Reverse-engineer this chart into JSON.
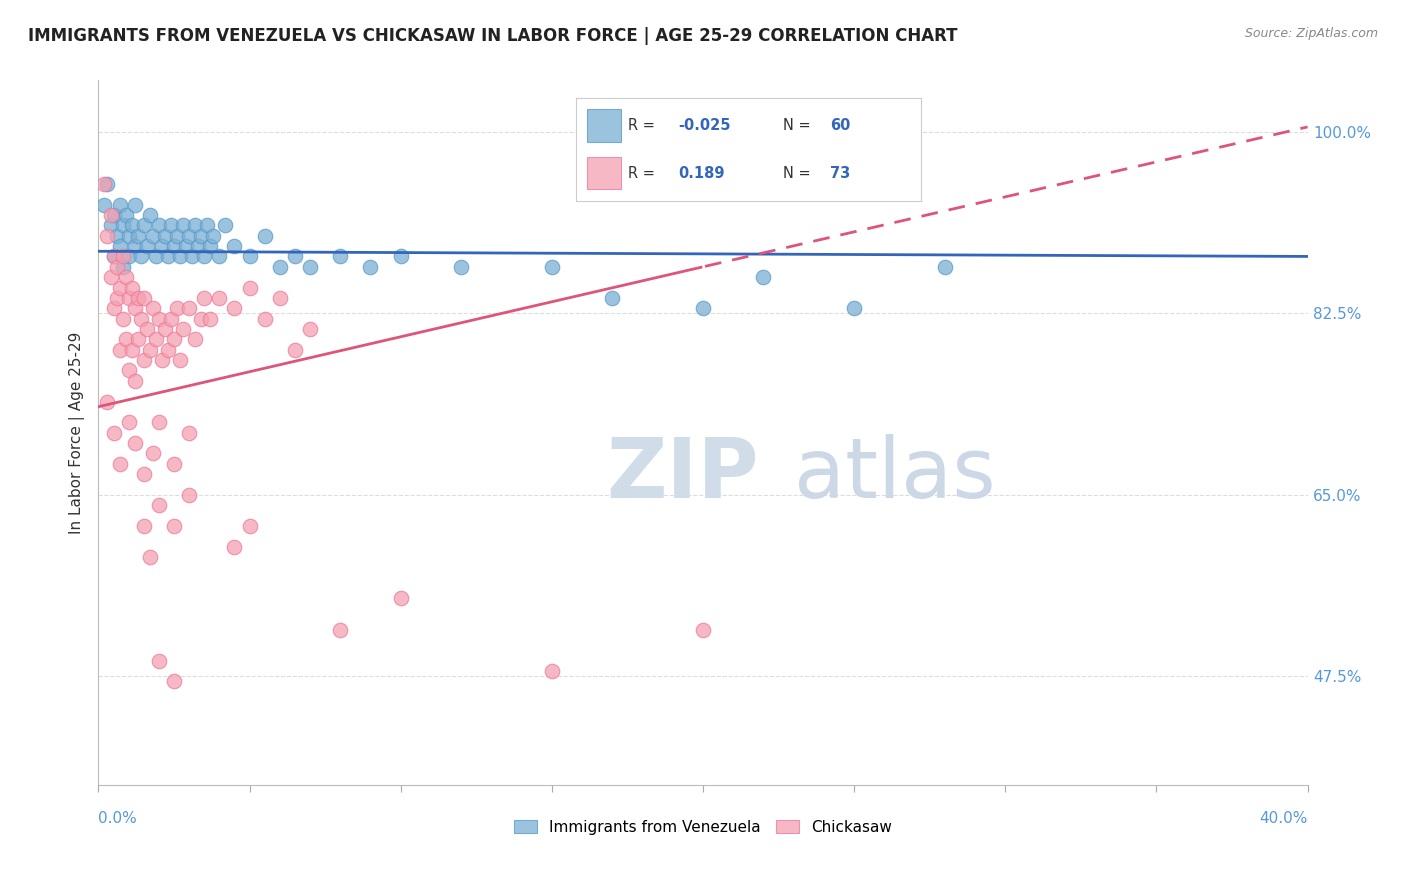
{
  "title": "IMMIGRANTS FROM VENEZUELA VS CHICKASAW IN LABOR FORCE | AGE 25-29 CORRELATION CHART",
  "source": "Source: ZipAtlas.com",
  "xlim": [
    0.0,
    40.0
  ],
  "ylim": [
    37.0,
    105.0
  ],
  "legend1_label": "Immigrants from Venezuela",
  "legend2_label": "Chickasaw",
  "R1": "-0.025",
  "N1": "60",
  "R2": "0.189",
  "N2": "73",
  "blue_color": "#7BAFD4",
  "pink_color": "#F4A0B0",
  "blue_edge": "#5599CC",
  "pink_edge": "#EE7799",
  "blue_trend_color": "#3366BB",
  "pink_trend_color": "#DD5577",
  "blue_scatter": [
    [
      0.2,
      93
    ],
    [
      0.3,
      95
    ],
    [
      0.4,
      91
    ],
    [
      0.5,
      92
    ],
    [
      0.5,
      88
    ],
    [
      0.6,
      90
    ],
    [
      0.7,
      89
    ],
    [
      0.7,
      93
    ],
    [
      0.8,
      91
    ],
    [
      0.8,
      87
    ],
    [
      0.9,
      92
    ],
    [
      1.0,
      90
    ],
    [
      1.0,
      88
    ],
    [
      1.1,
      91
    ],
    [
      1.2,
      89
    ],
    [
      1.2,
      93
    ],
    [
      1.3,
      90
    ],
    [
      1.4,
      88
    ],
    [
      1.5,
      91
    ],
    [
      1.6,
      89
    ],
    [
      1.7,
      92
    ],
    [
      1.8,
      90
    ],
    [
      1.9,
      88
    ],
    [
      2.0,
      91
    ],
    [
      2.1,
      89
    ],
    [
      2.2,
      90
    ],
    [
      2.3,
      88
    ],
    [
      2.4,
      91
    ],
    [
      2.5,
      89
    ],
    [
      2.6,
      90
    ],
    [
      2.7,
      88
    ],
    [
      2.8,
      91
    ],
    [
      2.9,
      89
    ],
    [
      3.0,
      90
    ],
    [
      3.1,
      88
    ],
    [
      3.2,
      91
    ],
    [
      3.3,
      89
    ],
    [
      3.4,
      90
    ],
    [
      3.5,
      88
    ],
    [
      3.6,
      91
    ],
    [
      3.7,
      89
    ],
    [
      3.8,
      90
    ],
    [
      4.0,
      88
    ],
    [
      4.2,
      91
    ],
    [
      4.5,
      89
    ],
    [
      5.0,
      88
    ],
    [
      5.5,
      90
    ],
    [
      6.0,
      87
    ],
    [
      6.5,
      88
    ],
    [
      7.0,
      87
    ],
    [
      8.0,
      88
    ],
    [
      9.0,
      87
    ],
    [
      10.0,
      88
    ],
    [
      12.0,
      87
    ],
    [
      15.0,
      87
    ],
    [
      17.0,
      84
    ],
    [
      20.0,
      83
    ],
    [
      22.0,
      86
    ],
    [
      25.0,
      83
    ],
    [
      28.0,
      87
    ]
  ],
  "pink_scatter": [
    [
      0.2,
      95
    ],
    [
      0.3,
      90
    ],
    [
      0.4,
      86
    ],
    [
      0.4,
      92
    ],
    [
      0.5,
      88
    ],
    [
      0.5,
      83
    ],
    [
      0.6,
      87
    ],
    [
      0.6,
      84
    ],
    [
      0.7,
      85
    ],
    [
      0.7,
      79
    ],
    [
      0.8,
      88
    ],
    [
      0.8,
      82
    ],
    [
      0.9,
      86
    ],
    [
      0.9,
      80
    ],
    [
      1.0,
      84
    ],
    [
      1.0,
      77
    ],
    [
      1.1,
      85
    ],
    [
      1.1,
      79
    ],
    [
      1.2,
      83
    ],
    [
      1.2,
      76
    ],
    [
      1.3,
      84
    ],
    [
      1.3,
      80
    ],
    [
      1.4,
      82
    ],
    [
      1.5,
      84
    ],
    [
      1.5,
      78
    ],
    [
      1.6,
      81
    ],
    [
      1.7,
      79
    ],
    [
      1.8,
      83
    ],
    [
      1.9,
      80
    ],
    [
      2.0,
      82
    ],
    [
      2.1,
      78
    ],
    [
      2.2,
      81
    ],
    [
      2.3,
      79
    ],
    [
      2.4,
      82
    ],
    [
      2.5,
      80
    ],
    [
      2.6,
      83
    ],
    [
      2.7,
      78
    ],
    [
      2.8,
      81
    ],
    [
      3.0,
      83
    ],
    [
      3.2,
      80
    ],
    [
      3.4,
      82
    ],
    [
      3.5,
      84
    ],
    [
      3.7,
      82
    ],
    [
      4.0,
      84
    ],
    [
      4.5,
      83
    ],
    [
      5.0,
      85
    ],
    [
      5.5,
      82
    ],
    [
      6.0,
      84
    ],
    [
      6.5,
      79
    ],
    [
      7.0,
      81
    ],
    [
      0.3,
      74
    ],
    [
      0.5,
      71
    ],
    [
      0.7,
      68
    ],
    [
      1.0,
      72
    ],
    [
      1.2,
      70
    ],
    [
      1.5,
      67
    ],
    [
      1.8,
      69
    ],
    [
      2.0,
      72
    ],
    [
      2.5,
      68
    ],
    [
      3.0,
      71
    ],
    [
      1.5,
      62
    ],
    [
      1.7,
      59
    ],
    [
      2.0,
      64
    ],
    [
      2.5,
      62
    ],
    [
      3.0,
      65
    ],
    [
      4.5,
      60
    ],
    [
      5.0,
      62
    ],
    [
      8.0,
      52
    ],
    [
      10.0,
      55
    ],
    [
      15.0,
      48
    ],
    [
      2.0,
      49
    ],
    [
      2.5,
      47
    ],
    [
      20.0,
      52
    ]
  ],
  "background_color": "#ffffff",
  "grid_color": "#dddddd",
  "ylabel_levels": [
    47.5,
    65.0,
    82.5,
    100.0
  ],
  "watermark_zip_color": "#d0dde8",
  "watermark_atlas_color": "#ccd8e5"
}
